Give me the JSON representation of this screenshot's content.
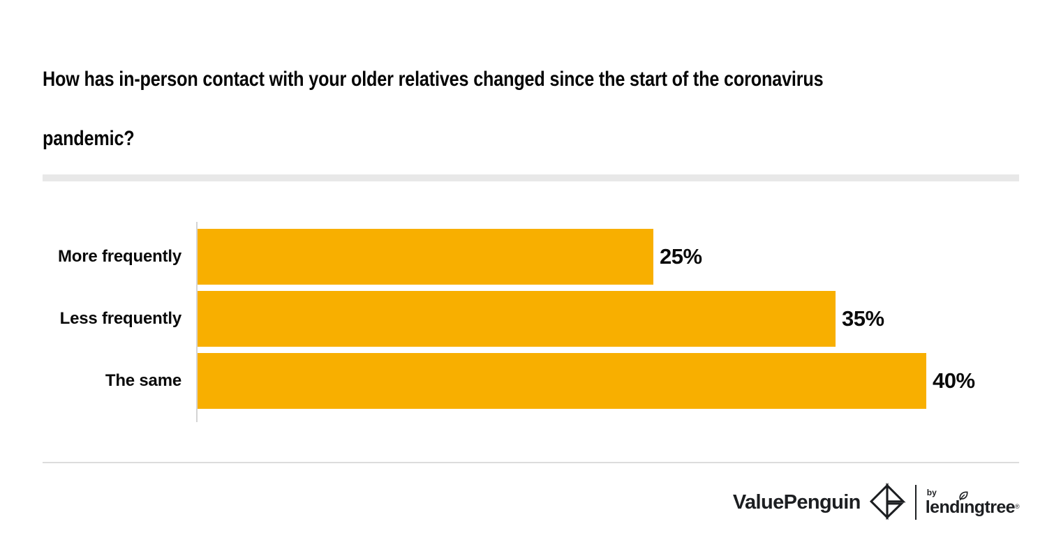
{
  "header": {
    "title_lines": [
      "How has in-person contact with your older relatives changed since the start of the coronavirus",
      "pandemic?"
    ]
  },
  "chart_data": {
    "type": "bar",
    "orientation": "horizontal",
    "title": "How has in-person contact with your older relatives changed since the start of the coronavirus pandemic?",
    "categories": [
      "More frequently",
      "Less frequently",
      "The same"
    ],
    "values": [
      25,
      35,
      40
    ],
    "value_labels": [
      "25%",
      "35%",
      "40%"
    ],
    "xlabel": "",
    "ylabel": "",
    "xlim": [
      0,
      40
    ],
    "grid": false,
    "legend": "none",
    "bar_color": "#F8AF00"
  },
  "footer": {
    "brand": "ValuePenguin",
    "by_label": "by",
    "partner": "lendingtree",
    "registered_mark": "®",
    "brand_icon": "origami-diamond-icon",
    "partner_icon": "leaf-icon"
  },
  "colors": {
    "bar": "#F8AF00",
    "ink": "#0a0a0a",
    "divider_thick": "#e8e8e8",
    "divider_thin": "#dcdcdc",
    "axis": "#d4d4d4",
    "logo_ink": "#1c1e21"
  }
}
